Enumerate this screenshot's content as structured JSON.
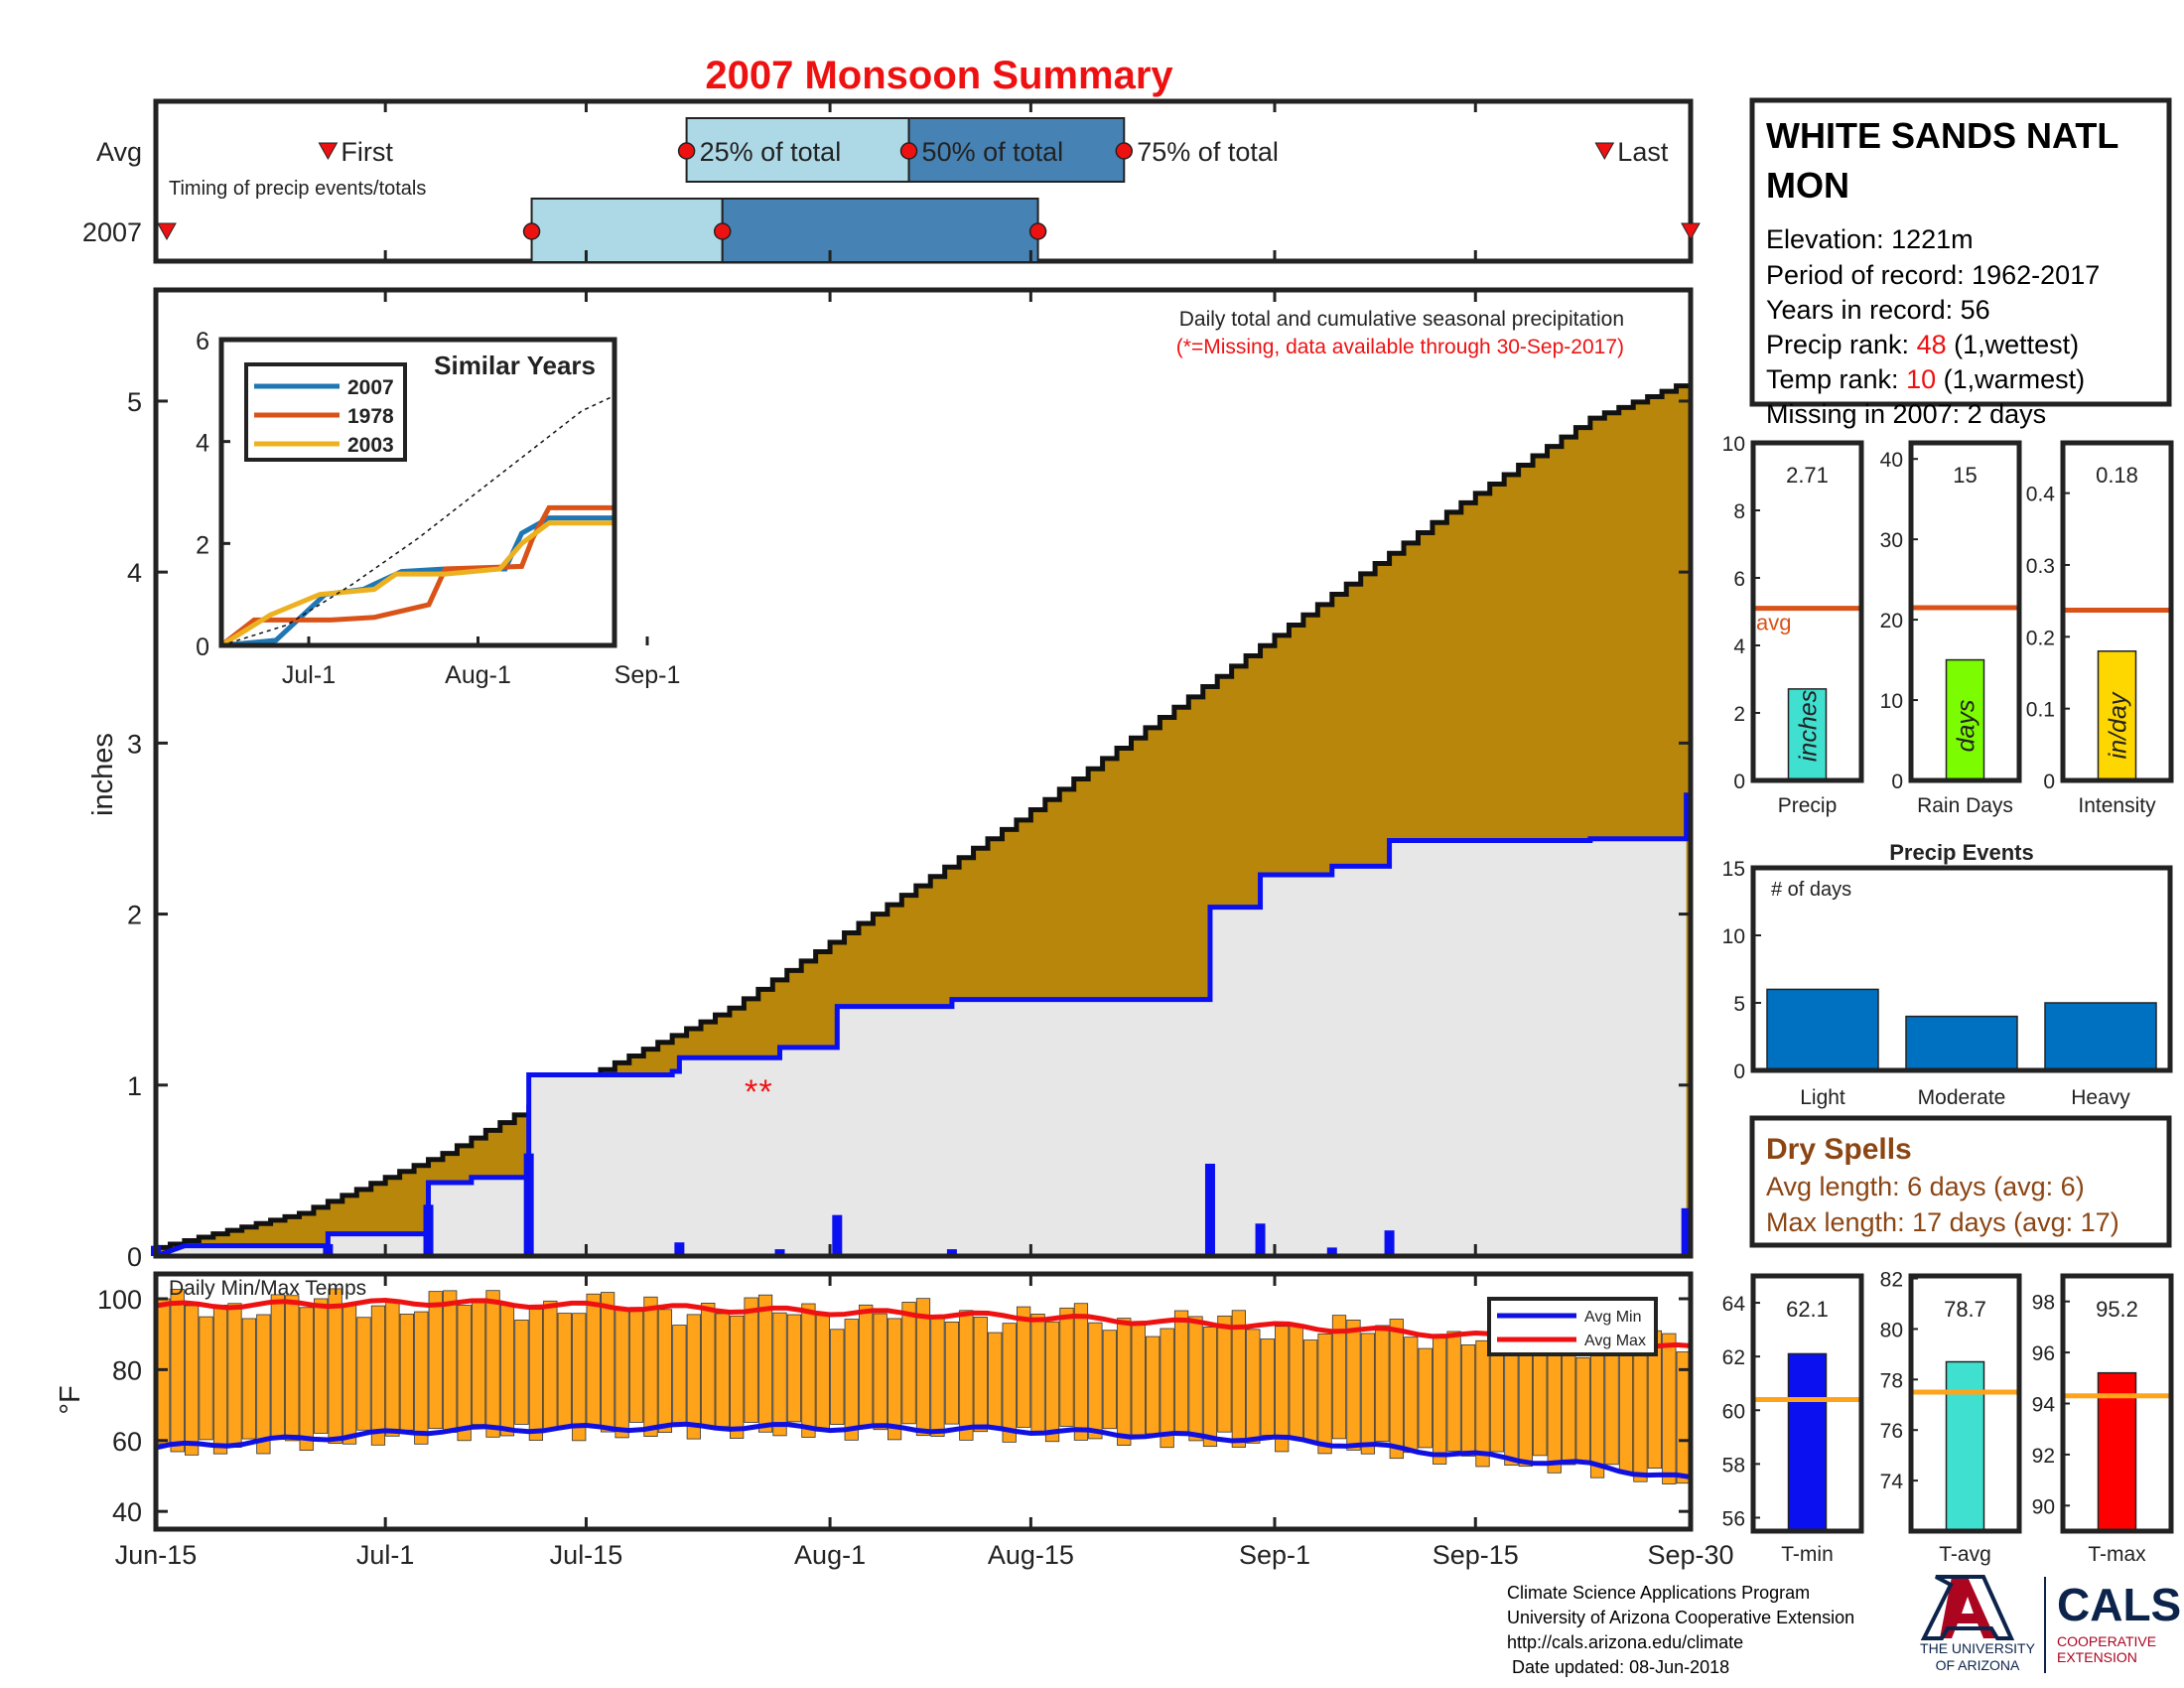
{
  "title": "2007 Monsoon Summary",
  "station": {
    "name_line1": "WHITE SANDS NATL",
    "name_line2": "MON",
    "elevation": "Elevation: 1221m",
    "period": "Period of record: 1962-2017",
    "years": "Years in record: 56",
    "precip_rank_label": "Precip rank: ",
    "precip_rank": "48",
    "precip_rank_note": " (1,wettest)",
    "temp_rank_label": "Temp rank: ",
    "temp_rank": "10",
    "temp_rank_note": " (1,warmest)",
    "missing": "Missing in 2007: 2 days"
  },
  "timing": {
    "row_avg": "Avg",
    "row_year": "2007",
    "first": "First",
    "last": "Last",
    "q25": "25% of total",
    "q50": "50% of total",
    "q75": "75% of total",
    "caption": "Timing of precip events/totals",
    "avg_days": {
      "first": 12,
      "q25": 37,
      "q50": 52.5,
      "q75": 67.5,
      "last": 101
    },
    "year_days": {
      "first": 0,
      "q25": 26.2,
      "q50": 39.5,
      "q75": 61.5,
      "last": 106
    }
  },
  "dates": {
    "start": "Jun-15",
    "ticks": [
      {
        "label": "Jun-15",
        "day": 0
      },
      {
        "label": "Jul-1",
        "day": 16
      },
      {
        "label": "Jul-15",
        "day": 30
      },
      {
        "label": "Aug-1",
        "day": 47
      },
      {
        "label": "Aug-15",
        "day": 61
      },
      {
        "label": "Sep-1",
        "day": 78
      },
      {
        "label": "Sep-15",
        "day": 92
      },
      {
        "label": "Sep-30",
        "day": 107
      }
    ]
  },
  "main_chart": {
    "ylabel": "inches",
    "yticks": [
      0,
      1,
      2,
      3,
      4,
      5
    ],
    "ylim": [
      0,
      5.65
    ],
    "caption": "Daily total and cumulative seasonal precipitation",
    "missing_note": "(*=Missing, data available through 30-Sep-2017)",
    "missing_marker": "**",
    "missing_days": [
      41.5,
      42.5
    ],
    "colors": {
      "avg_fill": "#b8860b",
      "year_fill": "#e8e7e7",
      "year_line": "#0a10f0",
      "daily_bar": "#0a10f0"
    }
  },
  "inset": {
    "title": "Similar Years",
    "yticks": [
      0,
      2,
      4,
      6
    ],
    "ylim": [
      0,
      6
    ],
    "xticks": [
      {
        "label": "Jul-1",
        "day": 16
      },
      {
        "label": "Aug-1",
        "day": 47
      },
      {
        "label": "Sep-1",
        "day": 78
      }
    ],
    "legend": [
      {
        "name": "2007",
        "color": "#1f77b4"
      },
      {
        "name": "1978",
        "color": "#d95319"
      },
      {
        "name": "2003",
        "color": "#edb120"
      }
    ]
  },
  "temp_chart": {
    "ylabel": "°F",
    "title": "Daily Min/Max Temps",
    "yticks": [
      40,
      60,
      80,
      100
    ],
    "ylim": [
      35,
      107
    ],
    "legend_min": "Avg Min",
    "legend_max": "Avg Max",
    "colors": {
      "bar": "#ffa31a",
      "avg_min": "#1010e0",
      "avg_max": "#ee1111"
    }
  },
  "summary_bars": [
    {
      "value_label": "2.71",
      "value": 2.71,
      "avg": 5.1,
      "ymax": 10,
      "yticks": [
        0,
        2,
        4,
        6,
        8,
        10
      ],
      "color": "#40e0d0",
      "inner": "inches",
      "xlabel": "Precip",
      "avg_label": "avg"
    },
    {
      "value_label": "15",
      "value": 15,
      "avg": 21.5,
      "ymax": 42,
      "yticks": [
        0,
        10,
        20,
        30,
        40
      ],
      "color": "#7cfc00",
      "inner": "days",
      "xlabel": "Rain Days"
    },
    {
      "value_label": "0.18",
      "value": 0.18,
      "avg": 0.237,
      "ymax": 0.47,
      "yticks": [
        0,
        0.1,
        0.2,
        0.3,
        0.4
      ],
      "color": "#ffd700",
      "inner": "in/day",
      "xlabel": "Intensity"
    }
  ],
  "precip_events": {
    "title": "Precip Events",
    "ylabel_note": "# of days",
    "yticks": [
      0,
      5,
      10,
      15
    ],
    "ymax": 15,
    "categories": [
      "Light",
      "Moderate",
      "Heavy"
    ],
    "values": [
      6,
      4,
      5
    ],
    "color": "#0070c0"
  },
  "dry_spells": {
    "title": "Dry Spells",
    "avg_length": "Avg length: 6 days (avg: 6)",
    "max_length": "Max length: 17 days (avg: 17)"
  },
  "temp_bars": [
    {
      "value_label": "62.1",
      "value": 62.1,
      "avg": 60.4,
      "ymin": 55.5,
      "ymax": 65,
      "yticks": [
        56,
        58,
        60,
        62,
        64
      ],
      "color": "#0a10f0",
      "xlabel": "T-min"
    },
    {
      "value_label": "78.7",
      "value": 78.7,
      "avg": 77.5,
      "ymin": 72,
      "ymax": 82.1,
      "yticks": [
        74,
        76,
        78,
        80,
        82
      ],
      "color": "#40e0d0",
      "xlabel": "T-avg"
    },
    {
      "value_label": "95.2",
      "value": 95.2,
      "avg": 94.3,
      "ymin": 89,
      "ymax": 99,
      "yticks": [
        90,
        92,
        94,
        96,
        98
      ],
      "color": "#ff0000",
      "xlabel": "T-max"
    }
  ],
  "footer": {
    "line1": "Climate Science Applications Program",
    "line2": "University of Arizona Cooperative Extension",
    "line3": "http://cals.arizona.edu/climate",
    "line4": " Date updated: 08-Jun-2018",
    "ua_logo_text1": "THE UNIVERSITY",
    "ua_logo_text2": "OF ARIZONA",
    "cals_logo": "CALS",
    "cals_sub1": "COOPERATIVE",
    "cals_sub2": "EXTENSION"
  },
  "chart_data": [
    {
      "type": "area",
      "title": "",
      "ylabel": "inches",
      "ylim": [
        0,
        5.65
      ],
      "x_ticks": [
        "Jun-15",
        "Jul-1",
        "Jul-15",
        "Aug-1",
        "Aug-15",
        "Sep-1",
        "Sep-15",
        "Sep-30"
      ],
      "series": [
        {
          "name": "Avg",
          "points": [
            [
              0,
              0.05
            ],
            [
              10,
              0.25
            ],
            [
              20,
              0.6
            ],
            [
              30,
              1.05
            ],
            [
              40,
              1.45
            ],
            [
              50,
              2.0
            ],
            [
              60,
              2.55
            ],
            [
              70,
              3.15
            ],
            [
              80,
              3.75
            ],
            [
              90,
              4.35
            ],
            [
              100,
              4.9
            ],
            [
              107,
              5.12
            ]
          ]
        }
      ],
      "cumulative_2007": [
        [
          0,
          0.0
        ],
        [
          2,
          0.06
        ],
        [
          12,
          0.06
        ],
        [
          12,
          0.13
        ],
        [
          19,
          0.13
        ],
        [
          19,
          0.43
        ],
        [
          22,
          0.43
        ],
        [
          22,
          0.46
        ],
        [
          26,
          0.46
        ],
        [
          26,
          1.06
        ],
        [
          36,
          1.06
        ],
        [
          36,
          1.08
        ],
        [
          36.5,
          1.08
        ],
        [
          36.5,
          1.16
        ],
        [
          43.5,
          1.16
        ],
        [
          43.5,
          1.22
        ],
        [
          47.5,
          1.22
        ],
        [
          47.5,
          1.46
        ],
        [
          55.5,
          1.46
        ],
        [
          55.5,
          1.5
        ],
        [
          73.5,
          1.5
        ],
        [
          73.5,
          2.04
        ],
        [
          77,
          2.04
        ],
        [
          77,
          2.23
        ],
        [
          82,
          2.23
        ],
        [
          82,
          2.28
        ],
        [
          86,
          2.28
        ],
        [
          86,
          2.43
        ],
        [
          100,
          2.43
        ],
        [
          100,
          2.44
        ],
        [
          106.7,
          2.44
        ],
        [
          106.7,
          2.71
        ]
      ],
      "daily_2007": [
        [
          0,
          0.06
        ],
        [
          12,
          0.07
        ],
        [
          19,
          0.3
        ],
        [
          26,
          0.6
        ],
        [
          36.5,
          0.08
        ],
        [
          43.5,
          0.04
        ],
        [
          47.5,
          0.24
        ],
        [
          55.5,
          0.04
        ],
        [
          73.5,
          0.54
        ],
        [
          77,
          0.19
        ],
        [
          82,
          0.05
        ],
        [
          86,
          0.15
        ],
        [
          106.7,
          0.28
        ]
      ]
    },
    {
      "type": "line",
      "title": "Similar Years",
      "ylim": [
        0,
        6
      ],
      "series": [
        {
          "name": "2007",
          "points": [
            [
              0,
              0
            ],
            [
              10,
              0.1
            ],
            [
              12,
              0.3
            ],
            [
              19,
              1.0
            ],
            [
              26,
              1.1
            ],
            [
              33,
              1.45
            ],
            [
              41,
              1.5
            ],
            [
              52,
              1.5
            ],
            [
              55,
              2.2
            ],
            [
              60,
              2.5
            ],
            [
              72,
              2.5
            ]
          ]
        },
        {
          "name": "1978",
          "points": [
            [
              0,
              0
            ],
            [
              6,
              0.5
            ],
            [
              20,
              0.5
            ],
            [
              28,
              0.55
            ],
            [
              38,
              0.8
            ],
            [
              41,
              1.5
            ],
            [
              55,
              1.55
            ],
            [
              57,
              2.1
            ],
            [
              60,
              2.7
            ],
            [
              72,
              2.7
            ]
          ]
        },
        {
          "name": "2003",
          "points": [
            [
              0,
              0
            ],
            [
              9,
              0.6
            ],
            [
              18,
              1.0
            ],
            [
              28,
              1.1
            ],
            [
              32,
              1.4
            ],
            [
              41,
              1.4
            ],
            [
              51,
              1.5
            ],
            [
              55,
              2.0
            ],
            [
              60,
              2.4
            ],
            [
              72,
              2.4
            ]
          ]
        },
        {
          "name": "Avg",
          "points": [
            [
              0,
              0
            ],
            [
              12,
              0.4
            ],
            [
              24,
              1.2
            ],
            [
              36,
              2.1
            ],
            [
              48,
              3.1
            ],
            [
              60,
              4.1
            ],
            [
              66,
              4.6
            ],
            [
              72,
              4.9
            ]
          ]
        }
      ]
    },
    {
      "type": "bar",
      "title": "Daily Min/Max Temps",
      "ylabel": "°F",
      "ylim": [
        35,
        107
      ],
      "series": [
        {
          "name": "Avg Max",
          "points": [
            [
              0,
              98
            ],
            [
              20,
              99
            ],
            [
              40,
              97
            ],
            [
              60,
              95
            ],
            [
              80,
              92
            ],
            [
              100,
              88
            ],
            [
              107,
              86
            ]
          ]
        },
        {
          "name": "Avg Min",
          "points": [
            [
              0,
              58
            ],
            [
              20,
              63
            ],
            [
              40,
              64
            ],
            [
              60,
              63
            ],
            [
              80,
              60
            ],
            [
              100,
              53
            ],
            [
              107,
              49
            ]
          ]
        }
      ]
    },
    {
      "type": "bar",
      "title": "Precip Events",
      "categories": [
        "Light",
        "Moderate",
        "Heavy"
      ],
      "values": [
        6,
        4,
        5
      ],
      "ylim": [
        0,
        15
      ]
    },
    {
      "type": "bar",
      "categories": [
        "Precip",
        "Rain Days",
        "Intensity"
      ],
      "values": [
        2.71,
        15,
        0.18
      ]
    },
    {
      "type": "bar",
      "categories": [
        "T-min",
        "T-avg",
        "T-max"
      ],
      "values": [
        62.1,
        78.7,
        95.2
      ]
    }
  ]
}
